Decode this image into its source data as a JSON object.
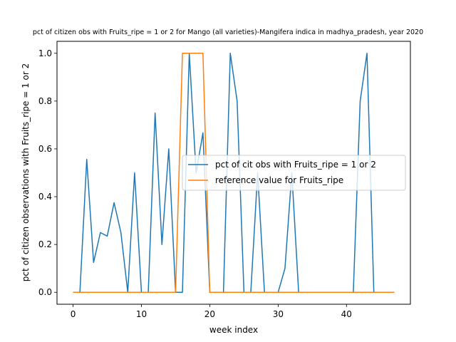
{
  "chart_data": {
    "type": "line",
    "title": "pct of citizen obs with Fruits_ripe = 1 or 2 for Mango (all varieties)-Mangifera indica in madhya_pradesh, year 2020",
    "xlabel": "week index",
    "ylabel": "pct of citizen observations with Fruits_ripe = 1 or 2",
    "xlim": [
      -2.35,
      49.35
    ],
    "ylim": [
      -0.05,
      1.05
    ],
    "xticks": [
      0,
      10,
      20,
      30,
      40
    ],
    "yticks": [
      0.0,
      0.2,
      0.4,
      0.6,
      0.8,
      1.0
    ],
    "xtick_labels": [
      "0",
      "10",
      "20",
      "30",
      "40"
    ],
    "ytick_labels": [
      "0.0",
      "0.2",
      "0.4",
      "0.6",
      "0.8",
      "1.0"
    ],
    "grid": false,
    "legend_position": "center-right",
    "x": [
      0,
      1,
      2,
      3,
      4,
      5,
      6,
      7,
      8,
      9,
      10,
      11,
      12,
      13,
      14,
      15,
      16,
      17,
      18,
      19,
      20,
      21,
      22,
      23,
      24,
      25,
      26,
      27,
      28,
      29,
      30,
      31,
      32,
      33,
      34,
      35,
      36,
      37,
      38,
      39,
      40,
      41,
      42,
      43,
      44,
      45,
      46,
      47
    ],
    "series": [
      {
        "name": "pct of cit obs with Fruits_ripe = 1 or 2",
        "color": "#1f77b4",
        "values": [
          0,
          0,
          0.556,
          0.125,
          0.25,
          0.235,
          0.375,
          0.25,
          0,
          0.5,
          0,
          0,
          0.75,
          0.2,
          0.6,
          0,
          0,
          1.0,
          0.5,
          0.667,
          0,
          0,
          0,
          1.0,
          0.8,
          0,
          0,
          0.5,
          0,
          0,
          0,
          0.1,
          0.5,
          0,
          0,
          0,
          0,
          0,
          0,
          0,
          0,
          0,
          0.8,
          1.0,
          0,
          0,
          0,
          0
        ]
      },
      {
        "name": "reference value for Fruits_ripe",
        "color": "#ff7f0e",
        "values": [
          0,
          0,
          0,
          0,
          0,
          0,
          0,
          0,
          0,
          0,
          0,
          0,
          0,
          0,
          0,
          0,
          1,
          1,
          1,
          1,
          0,
          0,
          0,
          0,
          0,
          0,
          0,
          0,
          0,
          0,
          0,
          0,
          0,
          0,
          0,
          0,
          0,
          0,
          0,
          0,
          0,
          0,
          0,
          0,
          0,
          0,
          0,
          0
        ]
      }
    ]
  }
}
